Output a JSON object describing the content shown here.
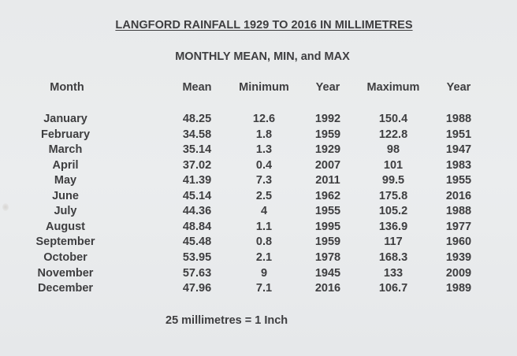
{
  "document": {
    "title": "LANGFORD RAINFALL 1929 TO 2016 IN MILLIMETRES",
    "subtitle": "MONTHLY MEAN, MIN, and  MAX",
    "footer_note": "25 millimetres = 1 Inch"
  },
  "table": {
    "headers": {
      "month": "Month",
      "mean": "Mean",
      "minimum": "Minimum",
      "min_year": "Year",
      "maximum": "Maximum",
      "max_year": "Year"
    },
    "rows": [
      {
        "month": "January",
        "mean": "48.25",
        "minimum": "12.6",
        "min_year": "1992",
        "maximum": "150.4",
        "max_year": "1988"
      },
      {
        "month": "February",
        "mean": "34.58",
        "minimum": "1.8",
        "min_year": "1959",
        "maximum": "122.8",
        "max_year": "1951"
      },
      {
        "month": "March",
        "mean": "35.14",
        "minimum": "1.3",
        "min_year": "1929",
        "maximum": "98",
        "max_year": "1947"
      },
      {
        "month": "April",
        "mean": "37.02",
        "minimum": "0.4",
        "min_year": "2007",
        "maximum": "101",
        "max_year": "1983"
      },
      {
        "month": "May",
        "mean": "41.39",
        "minimum": "7.3",
        "min_year": "2011",
        "maximum": "99.5",
        "max_year": "1955"
      },
      {
        "month": "June",
        "mean": "45.14",
        "minimum": "2.5",
        "min_year": "1962",
        "maximum": "175.8",
        "max_year": "2016"
      },
      {
        "month": "July",
        "mean": "44.36",
        "minimum": "4",
        "min_year": "1955",
        "maximum": "105.2",
        "max_year": "1988"
      },
      {
        "month": "August",
        "mean": "48.84",
        "minimum": "1.1",
        "min_year": "1995",
        "maximum": "136.9",
        "max_year": "1977"
      },
      {
        "month": "September",
        "mean": "45.48",
        "minimum": "0.8",
        "min_year": "1959",
        "maximum": "117",
        "max_year": "1960"
      },
      {
        "month": "October",
        "mean": "53.95",
        "minimum": "2.1",
        "min_year": "1978",
        "maximum": "168.3",
        "max_year": "1939"
      },
      {
        "month": "November",
        "mean": "57.63",
        "minimum": "9",
        "min_year": "1945",
        "maximum": "133",
        "max_year": "2009"
      },
      {
        "month": "December",
        "mean": "47.96",
        "minimum": "7.1",
        "min_year": "2016",
        "maximum": "106.7",
        "max_year": "1989"
      }
    ]
  },
  "colors": {
    "paper": "#e9ebec",
    "text": "#3e3e40"
  }
}
